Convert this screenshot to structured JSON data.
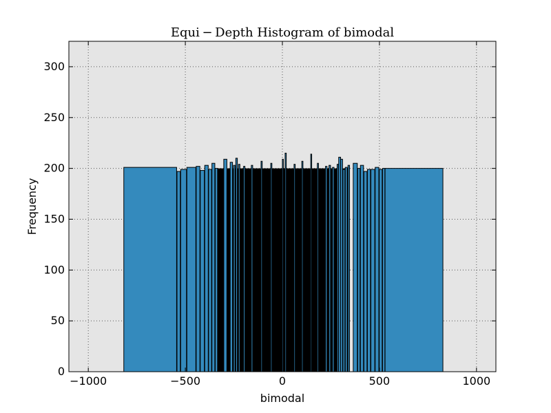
{
  "chart_data": {
    "type": "bar",
    "title": "Equi − Depth Histogram of bimodal",
    "xlabel": "bimodal",
    "ylabel": "Frequency",
    "xlim": [
      -1100,
      1100
    ],
    "ylim": [
      0,
      325
    ],
    "xticks": [
      -1000,
      -500,
      0,
      500,
      1000
    ],
    "xtick_labels": [
      "−1000",
      "−500",
      "0",
      "500",
      "1000"
    ],
    "yticks": [
      0,
      50,
      100,
      150,
      200,
      250,
      300
    ],
    "ytick_labels": [
      "0",
      "50",
      "100",
      "150",
      "200",
      "250",
      "300"
    ],
    "grid": true,
    "bar_color": "#348abd",
    "edge_color": "#000000",
    "background_color": "#e5e5e5",
    "dense_region": {
      "x_from": -340,
      "x_to": 340,
      "base_value": 200,
      "fill_color": "#000000"
    },
    "bins": [
      {
        "x0": -817,
        "x1": -545,
        "value": 201
      },
      {
        "x0": -543,
        "x1": -526,
        "value": 197
      },
      {
        "x0": -524,
        "x1": -494,
        "value": 199
      },
      {
        "x0": -492,
        "x1": -446,
        "value": 201
      },
      {
        "x0": -444,
        "x1": -425,
        "value": 202
      },
      {
        "x0": -423,
        "x1": -402,
        "value": 198
      },
      {
        "x0": -400,
        "x1": -382,
        "value": 203
      },
      {
        "x0": -380,
        "x1": -365,
        "value": 199
      },
      {
        "x0": -363,
        "x1": -348,
        "value": 205
      },
      {
        "x0": -346,
        "x1": -334,
        "value": 200
      },
      {
        "x0": -302,
        "x1": -286,
        "value": 209
      },
      {
        "x0": -269,
        "x1": -257,
        "value": 206
      },
      {
        "x0": -252,
        "x1": -244,
        "value": 203
      },
      {
        "x0": -240,
        "x1": -232,
        "value": 210
      },
      {
        "x0": -226,
        "x1": -219,
        "value": 204
      },
      {
        "x0": -200,
        "x1": -193,
        "value": 202
      },
      {
        "x0": -160,
        "x1": -153,
        "value": 203
      },
      {
        "x0": -110,
        "x1": -104,
        "value": 207
      },
      {
        "x0": -60,
        "x1": -54,
        "value": 205
      },
      {
        "x0": 0,
        "x1": 5,
        "value": 209
      },
      {
        "x0": 14,
        "x1": 20,
        "value": 215
      },
      {
        "x0": 60,
        "x1": 66,
        "value": 204
      },
      {
        "x0": 100,
        "x1": 106,
        "value": 207
      },
      {
        "x0": 146,
        "x1": 151,
        "value": 214
      },
      {
        "x0": 180,
        "x1": 186,
        "value": 205
      },
      {
        "x0": 222,
        "x1": 230,
        "value": 202
      },
      {
        "x0": 240,
        "x1": 248,
        "value": 203
      },
      {
        "x0": 258,
        "x1": 266,
        "value": 201
      },
      {
        "x0": 282,
        "x1": 289,
        "value": 204
      },
      {
        "x0": 290,
        "x1": 300,
        "value": 211
      },
      {
        "x0": 300,
        "x1": 310,
        "value": 209
      },
      {
        "x0": 312,
        "x1": 322,
        "value": 199
      },
      {
        "x0": 324,
        "x1": 334,
        "value": 201
      },
      {
        "x0": 338,
        "x1": 346,
        "value": 203
      },
      {
        "x0": 365,
        "x1": 386,
        "value": 205
      },
      {
        "x0": 388,
        "x1": 400,
        "value": 200
      },
      {
        "x0": 402,
        "x1": 418,
        "value": 203
      },
      {
        "x0": 420,
        "x1": 436,
        "value": 197
      },
      {
        "x0": 438,
        "x1": 454,
        "value": 199
      },
      {
        "x0": 456,
        "x1": 476,
        "value": 199
      },
      {
        "x0": 478,
        "x1": 497,
        "value": 201
      },
      {
        "x0": 499,
        "x1": 514,
        "value": 199
      },
      {
        "x0": 516,
        "x1": 528,
        "value": 200
      },
      {
        "x0": 529,
        "x1": 827,
        "value": 200
      }
    ]
  }
}
